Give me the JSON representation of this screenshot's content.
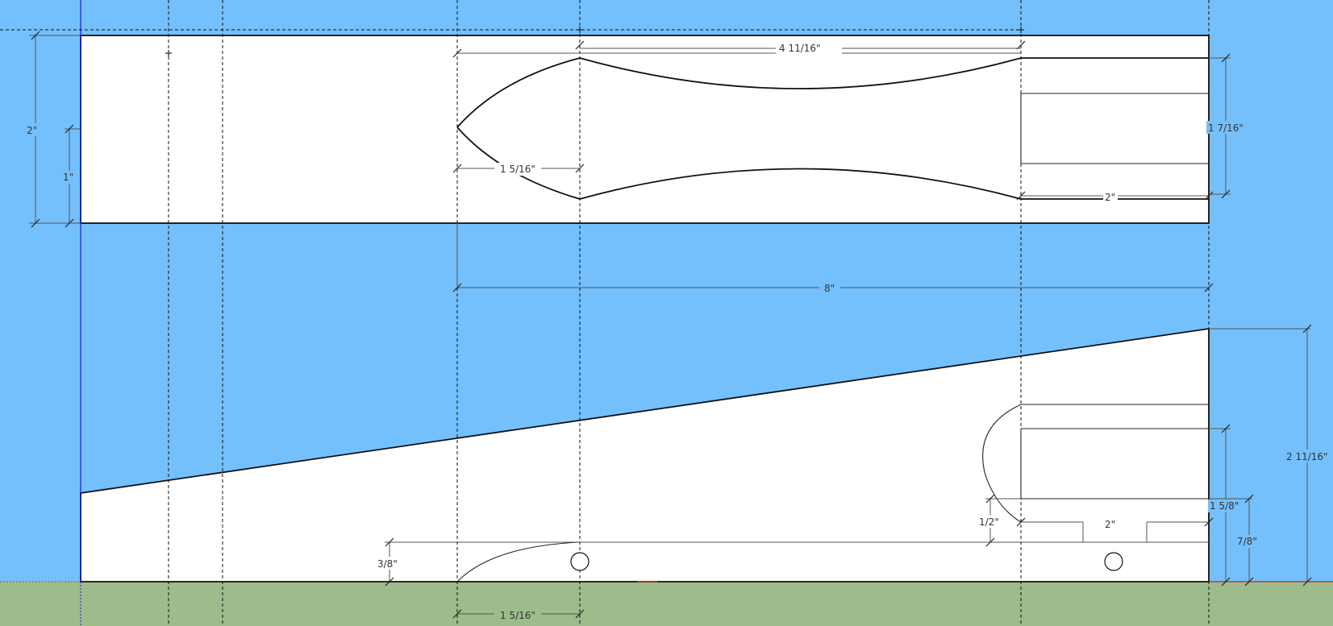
{
  "colors": {
    "sky": "#74c0fc",
    "ground": "#9cbc8c",
    "paper": "#ffffff",
    "line": "#111111",
    "dimension": "#555555",
    "axis_blue": "#1a1acd",
    "axis_red": "#cc2222"
  },
  "dimensions": {
    "top_total_length": "4 11/16\"",
    "top_height": "2\"",
    "top_half_height": "1\"",
    "top_nose_length": "1 5/16\"",
    "top_axle_width": "1 7/16\"",
    "top_tail_length": "2\"",
    "overall_length": "8\"",
    "side_tail_height": "2 11/16\"",
    "side_slot_height": "1 5/8\"",
    "side_slot_bottom": "7/8\"",
    "side_arc_offset": "1/2\"",
    "side_tail_length": "2\"",
    "side_nose_height": "3/8\"",
    "side_nose_length": "1 5/16\""
  }
}
